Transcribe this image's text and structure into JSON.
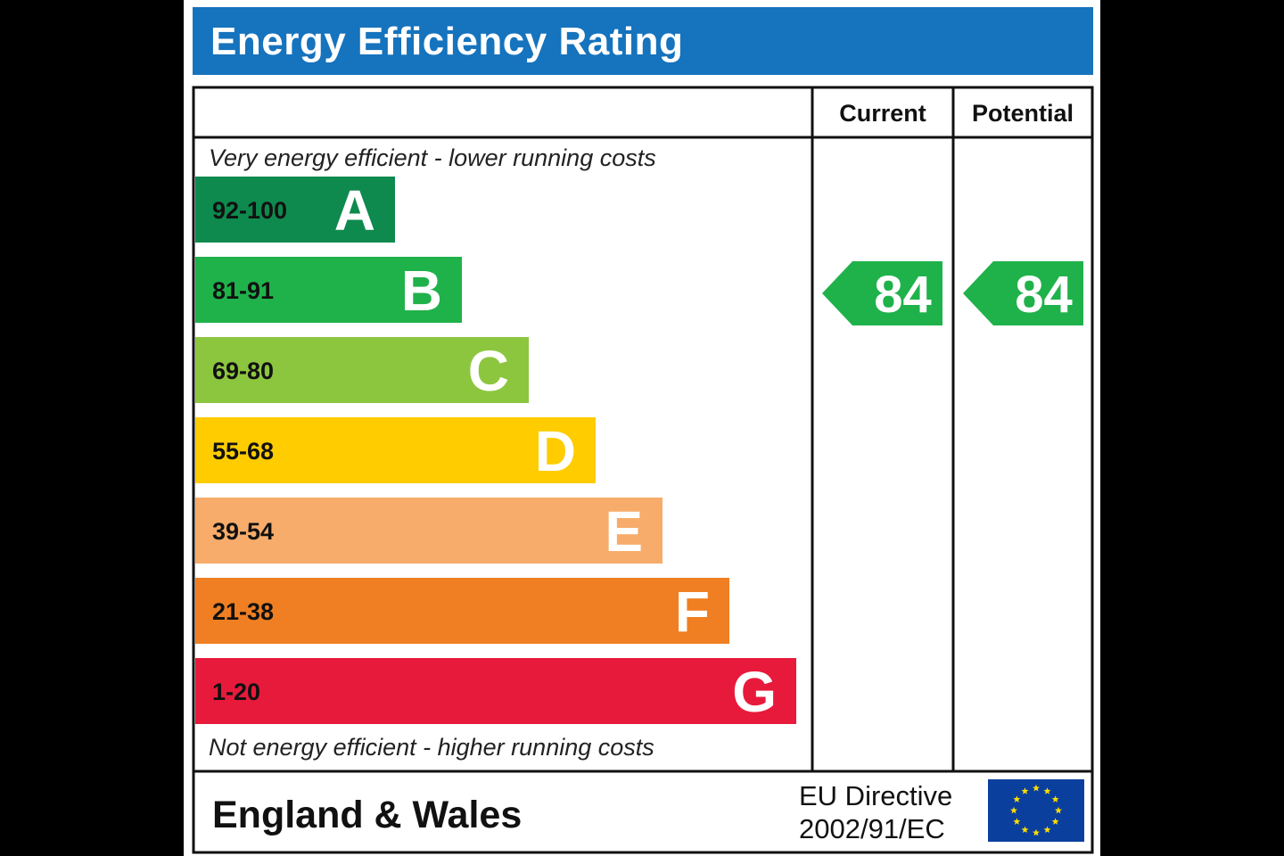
{
  "header": {
    "title": "Energy Efficiency Rating"
  },
  "columns": {
    "current": "Current",
    "potential": "Potential"
  },
  "notes": {
    "top": "Very energy efficient - lower running costs",
    "bottom": "Not energy efficient - higher running costs"
  },
  "footer": {
    "region": "England & Wales",
    "directive_line1": "EU Directive",
    "directive_line2": "2002/91/EC",
    "flag_icon": "eu-flag-icon"
  },
  "chart_data": {
    "type": "bar",
    "title": "Energy Efficiency Rating",
    "categories": [
      "A",
      "B",
      "C",
      "D",
      "E",
      "F",
      "G"
    ],
    "ranges": [
      "92-100",
      "81-91",
      "69-80",
      "55-68",
      "39-54",
      "21-38",
      "1-20"
    ],
    "values": [
      1,
      2,
      3,
      4,
      5,
      6,
      7
    ],
    "colors": [
      "#0e8a4e",
      "#1fb24a",
      "#8cc63f",
      "#ffcc00",
      "#f7ac6b",
      "#ef7f22",
      "#e81a3b"
    ],
    "range_text_colors": [
      "#111111",
      "#111111",
      "#111111",
      "#111111",
      "#111111",
      "#111111",
      "#111111"
    ],
    "current_rating": 84,
    "potential_rating": 84,
    "current_band": "B",
    "potential_band": "B",
    "rating_color": "#1fb24a"
  }
}
